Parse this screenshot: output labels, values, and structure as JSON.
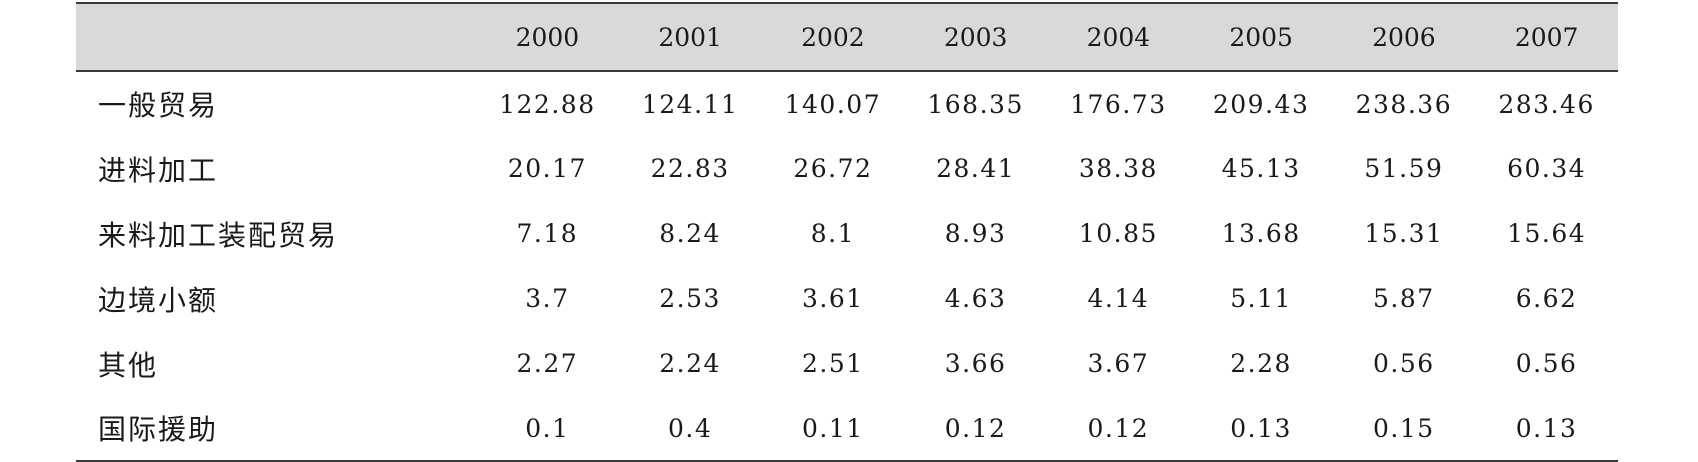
{
  "table": {
    "corner": "",
    "years": [
      "2000",
      "2001",
      "2002",
      "2003",
      "2004",
      "2005",
      "2006",
      "2007"
    ],
    "rows": [
      {
        "label": "一般贸易",
        "values": [
          "122.88",
          "124.11",
          "140.07",
          "168.35",
          "176.73",
          "209.43",
          "238.36",
          "283.46"
        ]
      },
      {
        "label": "进料加工",
        "values": [
          "20.17",
          "22.83",
          "26.72",
          "28.41",
          "38.38",
          "45.13",
          "51.59",
          "60.34"
        ]
      },
      {
        "label": "来料加工装配贸易",
        "values": [
          "7.18",
          "8.24",
          "8.1",
          "8.93",
          "10.85",
          "13.68",
          "15.31",
          "15.64"
        ]
      },
      {
        "label": "边境小额",
        "values": [
          "3.7",
          "2.53",
          "3.61",
          "4.63",
          "4.14",
          "5.11",
          "5.87",
          "6.62"
        ]
      },
      {
        "label": "其他",
        "values": [
          "2.27",
          "2.24",
          "2.51",
          "3.66",
          "3.67",
          "2.28",
          "0.56",
          "0.56"
        ]
      },
      {
        "label": "国际援助",
        "values": [
          "0.1",
          "0.4",
          "0.11",
          "0.12",
          "0.12",
          "0.13",
          "0.15",
          "0.13"
        ]
      }
    ]
  }
}
